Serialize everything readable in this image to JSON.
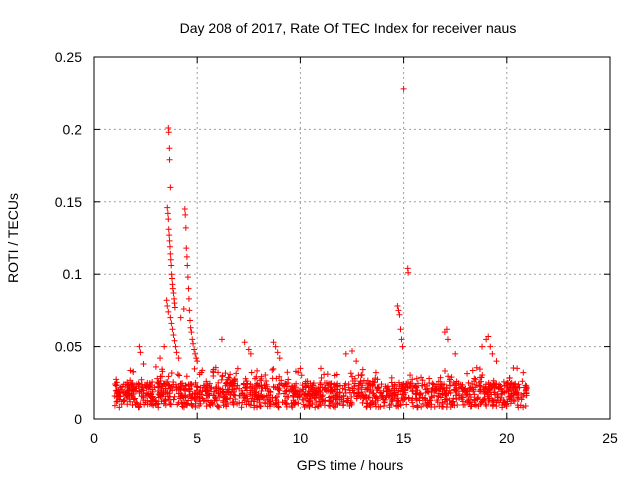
{
  "chart_data": {
    "type": "scatter",
    "title": "Day 208 of 2017, Rate Of TEC Index for receiver naus",
    "xlabel": "GPS time / hours",
    "ylabel": "ROTI / TECUs",
    "xlim": [
      0,
      25
    ],
    "ylim": [
      0,
      0.25
    ],
    "x_ticks": [
      0,
      5,
      10,
      15,
      20,
      25
    ],
    "y_ticks": [
      0,
      0.05,
      0.1,
      0.15,
      0.2,
      0.25
    ],
    "x_tick_labels": [
      "0",
      "5",
      "10",
      "15",
      "20",
      "25"
    ],
    "y_tick_labels": [
      "0",
      "0.05",
      "0.1",
      "0.15",
      "0.2",
      "0.25"
    ],
    "grid": true,
    "marker": "+",
    "series_color": "#ff0000",
    "background_range": [
      1.0,
      21.0
    ],
    "background_y": [
      0.008,
      0.025
    ],
    "points": [
      [
        3.6,
        0.201
      ],
      [
        3.62,
        0.198
      ],
      [
        3.65,
        0.187
      ],
      [
        3.66,
        0.179
      ],
      [
        3.7,
        0.16
      ],
      [
        3.55,
        0.146
      ],
      [
        3.58,
        0.142
      ],
      [
        3.6,
        0.138
      ],
      [
        3.62,
        0.131
      ],
      [
        3.64,
        0.127
      ],
      [
        3.66,
        0.123
      ],
      [
        3.68,
        0.119
      ],
      [
        3.7,
        0.114
      ],
      [
        3.72,
        0.11
      ],
      [
        3.74,
        0.106
      ],
      [
        3.76,
        0.1
      ],
      [
        3.78,
        0.097
      ],
      [
        3.8,
        0.093
      ],
      [
        3.82,
        0.09
      ],
      [
        3.85,
        0.087
      ],
      [
        3.88,
        0.083
      ],
      [
        3.9,
        0.08
      ],
      [
        3.92,
        0.077
      ],
      [
        3.6,
        0.074
      ],
      [
        3.7,
        0.07
      ],
      [
        3.75,
        0.066
      ],
      [
        3.8,
        0.062
      ],
      [
        3.85,
        0.058
      ],
      [
        3.9,
        0.054
      ],
      [
        3.95,
        0.05
      ],
      [
        3.52,
        0.082
      ],
      [
        3.55,
        0.078
      ],
      [
        4.0,
        0.046
      ],
      [
        4.1,
        0.042
      ],
      [
        4.2,
        0.07
      ],
      [
        4.35,
        0.076
      ],
      [
        4.4,
        0.145
      ],
      [
        4.42,
        0.141
      ],
      [
        4.45,
        0.132
      ],
      [
        4.47,
        0.118
      ],
      [
        4.5,
        0.112
      ],
      [
        4.52,
        0.106
      ],
      [
        4.55,
        0.098
      ],
      [
        4.58,
        0.09
      ],
      [
        4.6,
        0.083
      ],
      [
        4.62,
        0.075
      ],
      [
        4.65,
        0.068
      ],
      [
        4.68,
        0.063
      ],
      [
        4.72,
        0.06
      ],
      [
        4.76,
        0.055
      ],
      [
        4.8,
        0.052
      ],
      [
        4.85,
        0.048
      ],
      [
        4.9,
        0.045
      ],
      [
        4.95,
        0.042
      ],
      [
        5.0,
        0.04
      ],
      [
        2.2,
        0.05
      ],
      [
        2.25,
        0.046
      ],
      [
        2.4,
        0.038
      ],
      [
        3.0,
        0.036
      ],
      [
        3.2,
        0.042
      ],
      [
        3.4,
        0.05
      ],
      [
        6.2,
        0.055
      ],
      [
        7.3,
        0.053
      ],
      [
        7.5,
        0.048
      ],
      [
        7.6,
        0.045
      ],
      [
        8.7,
        0.053
      ],
      [
        8.8,
        0.05
      ],
      [
        8.9,
        0.046
      ],
      [
        9.0,
        0.042
      ],
      [
        10.0,
        0.035
      ],
      [
        11.0,
        0.035
      ],
      [
        12.2,
        0.045
      ],
      [
        12.5,
        0.047
      ],
      [
        12.7,
        0.04
      ],
      [
        14.7,
        0.078
      ],
      [
        14.75,
        0.075
      ],
      [
        14.8,
        0.072
      ],
      [
        14.85,
        0.062
      ],
      [
        14.9,
        0.055
      ],
      [
        14.95,
        0.05
      ],
      [
        15.0,
        0.228
      ],
      [
        15.2,
        0.104
      ],
      [
        15.22,
        0.101
      ],
      [
        17.0,
        0.06
      ],
      [
        17.1,
        0.062
      ],
      [
        17.15,
        0.055
      ],
      [
        17.5,
        0.045
      ],
      [
        18.8,
        0.05
      ],
      [
        19.0,
        0.055
      ],
      [
        19.1,
        0.057
      ],
      [
        19.2,
        0.05
      ],
      [
        19.3,
        0.045
      ],
      [
        19.5,
        0.04
      ],
      [
        20.5,
        0.035
      ],
      [
        20.8,
        0.032
      ]
    ]
  }
}
